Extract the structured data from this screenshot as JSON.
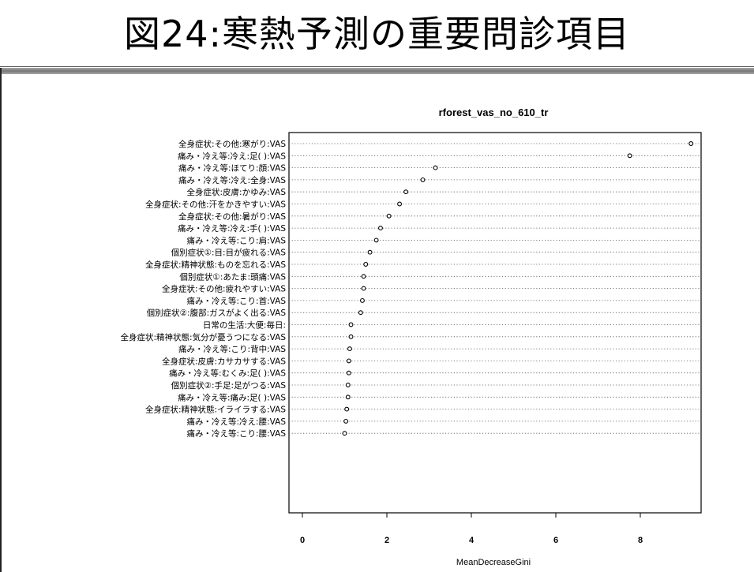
{
  "slide": {
    "title": "図24:寒熱予測の重要問診項目"
  },
  "chart_data": {
    "type": "scatter",
    "title": "rforest_vas_no_610_tr",
    "xlabel": "MeanDecreaseGini",
    "ylabel": "",
    "xlim": [
      -0.3,
      9.3
    ],
    "xticks": [
      0,
      2,
      4,
      6,
      8
    ],
    "grid": "dotted horizontal lines",
    "categories": [
      "全身症状:その他:寒がり:VAS",
      "痛み・冷え等:冷え:足( ):VAS",
      "痛み・冷え等:ほてり:顔:VAS",
      "痛み・冷え等:冷え:全身:VAS",
      "全身症状:皮膚:かゆみ:VAS",
      "全身症状:その他:汗をかきやすい:VAS",
      "全身症状:その他:暑がり:VAS",
      "痛み・冷え等:冷え:手( ):VAS",
      "痛み・冷え等:こり:肩:VAS",
      "個別症状①:目:目が疲れる:VAS",
      "全身症状:精神状態:ものを忘れる:VAS",
      "個別症状①:あたま:頭痛:VAS",
      "全身症状:その他:疲れやすい:VAS",
      "痛み・冷え等:こり:首:VAS",
      "個別症状②:腹部:ガスがよく出る:VAS",
      "日常の生活:大便:毎日:",
      "全身症状:精神状態:気分が憂うつになる:VAS",
      "痛み・冷え等:こり:背中:VAS",
      "全身症状:皮膚:カサカサする:VAS",
      "痛み・冷え等:むくみ:足( ):VAS",
      "個別症状②:手足:足がつる:VAS",
      "痛み・冷え等:痛み:足( ):VAS",
      "全身症状:精神状態:イライラする:VAS",
      "痛み・冷え等:冷え:腰:VAS",
      "痛み・冷え等:こり:腰:VAS"
    ],
    "values": [
      9.2,
      7.75,
      3.15,
      2.85,
      2.45,
      2.3,
      2.05,
      1.85,
      1.75,
      1.6,
      1.5,
      1.45,
      1.45,
      1.42,
      1.38,
      1.15,
      1.15,
      1.12,
      1.1,
      1.1,
      1.08,
      1.08,
      1.05,
      1.03,
      1.0
    ]
  },
  "colors": {
    "axis": "#000000",
    "grid": "#555555",
    "point": "#000000"
  }
}
